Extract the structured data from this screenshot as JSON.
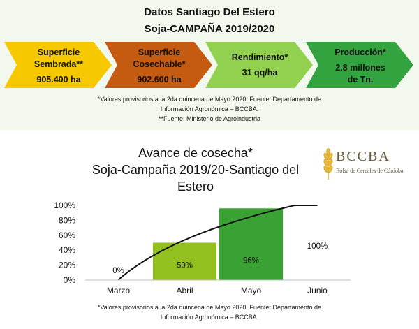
{
  "header": {
    "title": "Datos Santiago Del Estero",
    "subtitle": "Soja-CAMPAÑA 2019/2020"
  },
  "cards": [
    {
      "label_1": "Superficie",
      "label_2": "Sembrada**",
      "value_1": "905.400 ha",
      "value_2": "",
      "color": "#f5c800"
    },
    {
      "label_1": "Superficie",
      "label_2": "Cosechable*",
      "value_1": "902.600 ha",
      "value_2": "",
      "color": "#c55a11"
    },
    {
      "label_1": "Rendimiento*",
      "label_2": "",
      "value_1": "31 qq/ha",
      "value_2": "",
      "color": "#92d050"
    },
    {
      "label_1": "Producción*",
      "label_2": "",
      "value_1": "2.8 millones",
      "value_2": "de Tn.",
      "color": "#33a33f"
    }
  ],
  "notes": {
    "line_1": "*Valores provisorios a la 2da quincena de Mayo 2020. Fuente: Departamento de",
    "line_2": "Información Agronómica – BCCBA.",
    "line_3": "**Fuente: Ministerio de Agroindustria"
  },
  "logo": {
    "name": "BCCBA",
    "subtitle": "Bolsa de Cereales de Córdoba",
    "color": "#6b5a3a",
    "icon": "wheat-icon"
  },
  "chart_data": {
    "type": "bar",
    "title_lines": [
      "Avance de cosecha*",
      "Soja-Campaña 2019/20-Santiago del",
      "Estero"
    ],
    "categories": [
      "Marzo",
      "Abril",
      "Mayo",
      "Junio"
    ],
    "values": [
      0,
      50,
      96,
      100
    ],
    "data_labels": [
      "0%",
      "50%",
      "96%",
      "100%"
    ],
    "bar_colors": [
      "#ffffff",
      "#92c01f",
      "#3aa135",
      "#ffffff"
    ],
    "yticks": [
      "0%",
      "20%",
      "40%",
      "60%",
      "80%",
      "100%"
    ],
    "ylim": [
      0,
      100
    ],
    "trendline": "log",
    "grid": false
  },
  "footnote": {
    "line_1": "*Valores provisorios a la 2da quincena de Mayo 2020. Fuente: Departamento de",
    "line_2": "Información Agronómica – BCCBA."
  }
}
